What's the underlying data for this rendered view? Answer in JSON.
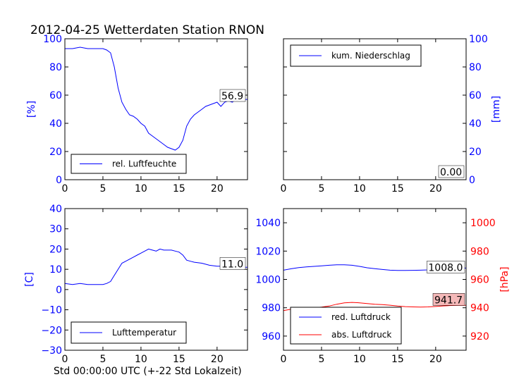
{
  "title": "2012-04-25 Wetterdaten Station RNON",
  "xlabel": "Std 00:00:00 UTC (+-22 Std Lokalzeit)",
  "colors": {
    "blue": "#0000ff",
    "red": "#ff0000",
    "axis": "#000000",
    "value_box_red": "#f4b8b8"
  },
  "chart_data": [
    {
      "type": "line",
      "panel": "top-left",
      "ylabel": "[%]",
      "xlim": [
        0,
        24
      ],
      "ylim": [
        0,
        100
      ],
      "xticks": [
        0,
        5,
        10,
        15,
        20
      ],
      "yticks": [
        0,
        20,
        40,
        60,
        80,
        100
      ],
      "ytick_side": "left",
      "legend": {
        "placement": "lower-left"
      },
      "last_value_label": "56.9",
      "series": [
        {
          "name": "rel. Luftfeuchte",
          "color": "#0000ff",
          "x": [
            0,
            1,
            2,
            3,
            4,
            5,
            5.5,
            6,
            6.5,
            7,
            7.5,
            8,
            8.5,
            9,
            9.5,
            10,
            10.5,
            11,
            11.5,
            12,
            12.5,
            13,
            13.5,
            14,
            14.5,
            15,
            15.5,
            16,
            16.5,
            17,
            17.5,
            18,
            18.5,
            19,
            19.5,
            20,
            20.5,
            21,
            21.5,
            22,
            22.5,
            23,
            23.5,
            24
          ],
          "y": [
            93,
            93,
            94,
            93,
            93,
            93,
            92,
            90,
            80,
            65,
            55,
            50,
            46,
            45,
            43,
            40,
            38,
            33,
            31,
            29,
            27,
            25,
            23,
            22,
            21,
            23,
            28,
            38,
            43,
            46,
            48,
            50,
            52,
            53,
            54,
            55,
            52,
            55,
            56,
            55,
            57,
            58,
            56.9,
            57
          ]
        }
      ]
    },
    {
      "type": "line",
      "panel": "top-right",
      "ylabel": "[mm]",
      "xlim": [
        0,
        24
      ],
      "ylim": [
        0,
        100
      ],
      "xticks": [
        0,
        5,
        10,
        15,
        20
      ],
      "yticks": [
        0,
        20,
        40,
        60,
        80,
        100
      ],
      "ytick_side": "right",
      "legend": {
        "placement": "upper-left"
      },
      "last_value_label": "0.00",
      "series": [
        {
          "name": "kum. Niederschlag",
          "color": "#0000ff",
          "x": [
            0,
            24
          ],
          "y": [
            0,
            0
          ]
        }
      ]
    },
    {
      "type": "line",
      "panel": "bottom-left",
      "ylabel": "[C]",
      "xlim": [
        0,
        24
      ],
      "ylim": [
        -30,
        40
      ],
      "xticks": [
        0,
        5,
        10,
        15,
        20
      ],
      "yticks": [
        -30,
        -20,
        -10,
        0,
        10,
        20,
        30,
        40
      ],
      "ytick_side": "left",
      "legend": {
        "placement": "lower-left"
      },
      "last_value_label": "11.0",
      "series": [
        {
          "name": "Lufttemperatur",
          "color": "#0000ff",
          "x": [
            0,
            1,
            2,
            3,
            4,
            5,
            5.5,
            6,
            6.5,
            7,
            7.5,
            8,
            8.5,
            9,
            9.5,
            10,
            10.5,
            11,
            11.5,
            12,
            12.5,
            13,
            13.5,
            14,
            14.5,
            15,
            15.5,
            16,
            16.5,
            17,
            18,
            19,
            20,
            21,
            22,
            23,
            24
          ],
          "y": [
            3,
            2.5,
            3,
            2.5,
            2.5,
            2.5,
            3,
            4,
            7,
            10,
            13,
            14,
            15,
            16,
            17,
            18,
            19,
            20,
            19.5,
            19,
            20,
            19.5,
            19.5,
            19.5,
            19,
            18.5,
            17,
            14.5,
            14,
            13.5,
            13,
            12,
            11.5,
            11.5,
            11,
            11,
            11
          ]
        }
      ]
    },
    {
      "type": "line",
      "panel": "bottom-right",
      "ylabel": "[hPa]",
      "xlim": [
        0,
        24
      ],
      "ylim": [
        950,
        1050
      ],
      "y2lim": [
        910,
        1010
      ],
      "xticks": [
        0,
        5,
        10,
        15,
        20
      ],
      "yticks": [
        960,
        980,
        1000,
        1020,
        1040
      ],
      "y2ticks": [
        920,
        940,
        960,
        980,
        1000
      ],
      "legend": {
        "placement": "lower-left"
      },
      "last_value_labels": [
        "1008.0",
        "941.7"
      ],
      "series": [
        {
          "name": "red. Luftdruck",
          "color": "#0000ff",
          "axis": "left",
          "x": [
            0,
            1,
            2,
            3,
            4,
            5,
            6,
            7,
            8,
            9,
            10,
            11,
            12,
            13,
            14,
            15,
            16,
            17,
            18,
            19,
            20,
            21,
            22,
            23,
            24
          ],
          "y": [
            1006.5,
            1007.5,
            1008.3,
            1008.8,
            1009.2,
            1009.6,
            1010.0,
            1010.3,
            1010.3,
            1010.0,
            1009.2,
            1008.2,
            1007.6,
            1007.0,
            1006.5,
            1006.3,
            1006.3,
            1006.4,
            1006.5,
            1006.7,
            1007.2,
            1007.6,
            1008.0,
            1008.0,
            1008.0
          ]
        },
        {
          "name": "abs. Luftdruck",
          "color": "#ff0000",
          "axis": "right",
          "x": [
            0,
            1,
            2,
            3,
            4,
            5,
            6,
            7,
            8,
            9,
            10,
            11,
            12,
            13,
            14,
            15,
            16,
            17,
            18,
            19,
            20,
            21,
            22,
            23,
            24
          ],
          "y": [
            938.0,
            939.0,
            939.5,
            939.8,
            940.0,
            940.5,
            941.2,
            942.5,
            943.5,
            943.8,
            943.5,
            943.0,
            942.5,
            942.2,
            941.8,
            941.2,
            940.8,
            940.6,
            940.5,
            940.6,
            940.9,
            941.3,
            941.6,
            941.7,
            941.7
          ]
        }
      ]
    }
  ]
}
